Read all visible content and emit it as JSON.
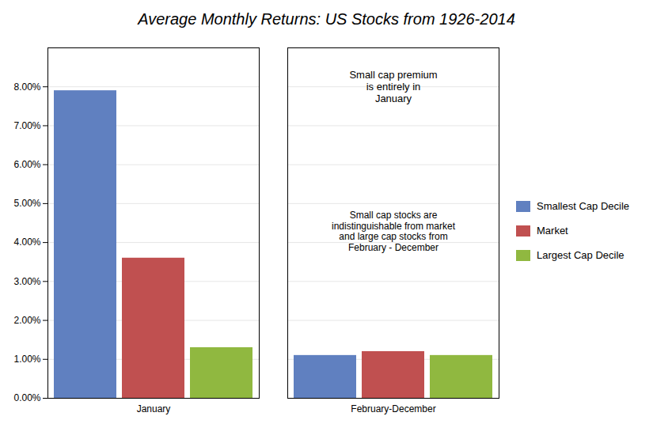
{
  "chart_data": {
    "type": "bar",
    "title": "Average Monthly Returns: US Stocks from 1926-2014",
    "categories": [
      "January",
      "February-December"
    ],
    "series": [
      {
        "name": "Smallest Cap Decile",
        "color": "#6080c0",
        "values": [
          0.079,
          0.011
        ]
      },
      {
        "name": "Market",
        "color": "#c05050",
        "values": [
          0.036,
          0.012
        ]
      },
      {
        "name": "Largest Cap Decile",
        "color": "#90b840",
        "values": [
          0.013,
          0.011
        ]
      }
    ],
    "ylim": [
      0,
      0.09
    ],
    "yticks": [
      {
        "value": 0.0,
        "label": "0.00%"
      },
      {
        "value": 0.01,
        "label": "1.00%"
      },
      {
        "value": 0.02,
        "label": "2.00%"
      },
      {
        "value": 0.03,
        "label": "3.00%"
      },
      {
        "value": 0.04,
        "label": "4.00%"
      },
      {
        "value": 0.05,
        "label": "5.00%"
      },
      {
        "value": 0.06,
        "label": "6.00%"
      },
      {
        "value": 0.07,
        "label": "7.00%"
      },
      {
        "value": 0.08,
        "label": "8.00%"
      }
    ],
    "annotations": [
      "Small cap premium\nis entirely in\nJanuary",
      "Small cap stocks are\nindistinguishable from market\nand large cap stocks from\nFebruary - December"
    ],
    "grid": true,
    "legend": "right"
  }
}
